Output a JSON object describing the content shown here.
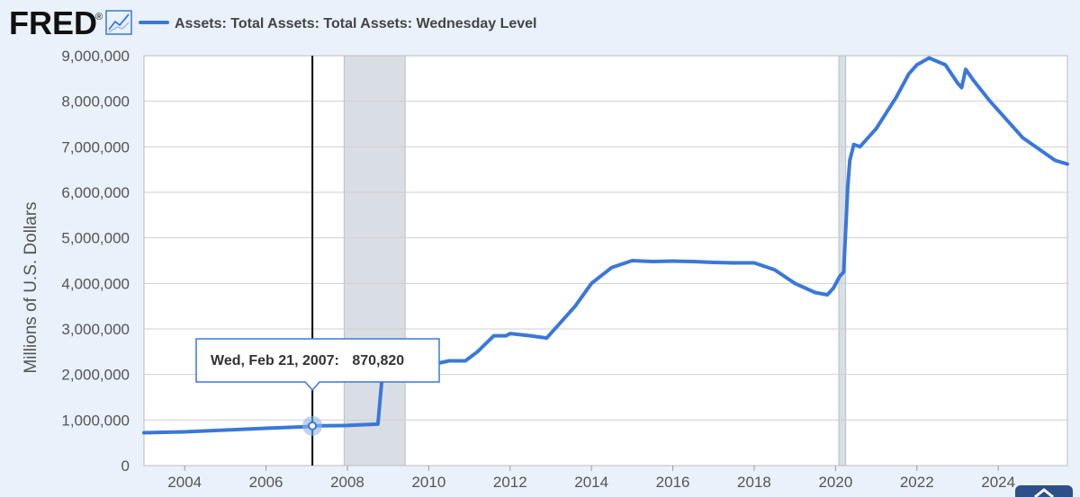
{
  "logo": {
    "text": "FRED",
    "mark": "®",
    "icon": "chart-line-icon"
  },
  "legend": {
    "label": "Assets: Total Assets: Total Assets: Wednesday Level",
    "color": "#3a78d8"
  },
  "tooltip": {
    "date": "Wed, Feb 21, 2007:",
    "value": "870,820"
  },
  "scroll_button": {
    "icon": "chevron-up-icon"
  },
  "colors": {
    "background": "#e9f1fa",
    "plot_background": "#ffffff",
    "line": "#3a78d8",
    "recession": "#d9dee5",
    "gridline": "#cfcfcf",
    "crosshair": "#000000",
    "tooltip_border": "#3a78d8",
    "scroll_button": "#2d4f8a"
  },
  "chart_data": {
    "type": "line",
    "title": "",
    "xlabel": "",
    "ylabel": "Millions of U.S. Dollars",
    "xlim": [
      2003.0,
      2025.7
    ],
    "ylim": [
      0,
      9000000
    ],
    "x_tick_labels": [
      "2004",
      "2006",
      "2008",
      "2010",
      "2012",
      "2014",
      "2016",
      "2018",
      "2020",
      "2022",
      "2024"
    ],
    "y_tick_labels": [
      "0",
      "1,000,000",
      "2,000,000",
      "3,000,000",
      "4,000,000",
      "5,000,000",
      "6,000,000",
      "7,000,000",
      "8,000,000",
      "9,000,000"
    ],
    "grid": true,
    "legend_position": "top",
    "recessions": [
      {
        "start": 2007.92,
        "end": 2009.42
      },
      {
        "start": 2020.08,
        "end": 2020.25
      }
    ],
    "highlight": {
      "x": 2007.14,
      "y": 870820,
      "label": "Wed, Feb 21, 2007",
      "value": "870,820"
    },
    "series": [
      {
        "name": "Assets: Total Assets: Total Assets: Wednesday Level",
        "x": [
          2003.0,
          2004.0,
          2005.0,
          2006.0,
          2007.0,
          2007.14,
          2008.0,
          2008.5,
          2008.75,
          2008.85,
          2009.0,
          2009.3,
          2009.6,
          2010.0,
          2010.5,
          2010.9,
          2011.2,
          2011.6,
          2011.9,
          2012.0,
          2012.5,
          2012.9,
          2013.2,
          2013.6,
          2014.0,
          2014.5,
          2015.0,
          2015.5,
          2016.0,
          2016.5,
          2017.0,
          2017.5,
          2018.0,
          2018.5,
          2019.0,
          2019.5,
          2019.8,
          2019.95,
          2020.1,
          2020.2,
          2020.3,
          2020.35,
          2020.45,
          2020.6,
          2021.0,
          2021.5,
          2021.8,
          2022.0,
          2022.3,
          2022.7,
          2023.0,
          2023.1,
          2023.2,
          2023.4,
          2023.8,
          2024.2,
          2024.6,
          2025.0,
          2025.4,
          2025.7
        ],
        "y": [
          720000,
          740000,
          780000,
          820000,
          855000,
          870820,
          880000,
          900000,
          910000,
          1900000,
          2000000,
          2050000,
          2100000,
          2200000,
          2300000,
          2300000,
          2500000,
          2850000,
          2850000,
          2900000,
          2850000,
          2800000,
          3100000,
          3500000,
          4000000,
          4350000,
          4500000,
          4480000,
          4490000,
          4480000,
          4460000,
          4450000,
          4450000,
          4300000,
          4000000,
          3800000,
          3750000,
          3900000,
          4150000,
          4250000,
          6100000,
          6700000,
          7050000,
          7000000,
          7400000,
          8100000,
          8600000,
          8800000,
          8950000,
          8800000,
          8400000,
          8300000,
          8700000,
          8450000,
          8000000,
          7600000,
          7200000,
          6950000,
          6700000,
          6620000
        ]
      }
    ]
  }
}
